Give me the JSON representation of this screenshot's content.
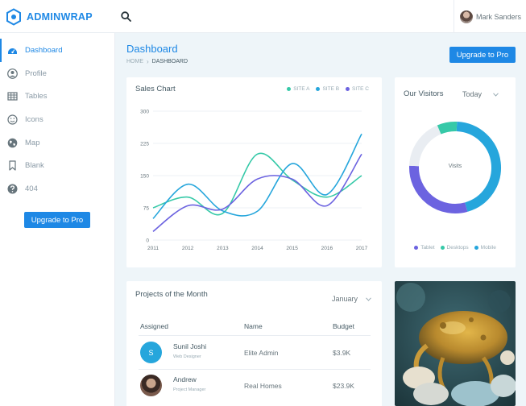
{
  "brand": {
    "part1": "ADMIN",
    "part2": "WRAP"
  },
  "header": {
    "user_name": "Mark Sanders"
  },
  "sidebar": {
    "items": [
      {
        "label": "Dashboard",
        "icon": "dashboard-icon"
      },
      {
        "label": "Profile",
        "icon": "user-icon"
      },
      {
        "label": "Tables",
        "icon": "table-icon"
      },
      {
        "label": "Icons",
        "icon": "smiley-icon"
      },
      {
        "label": "Map",
        "icon": "globe-icon"
      },
      {
        "label": "Blank",
        "icon": "bookmark-icon"
      },
      {
        "label": "404",
        "icon": "help-icon"
      }
    ],
    "upgrade_label": "Upgrade to Pro"
  },
  "page": {
    "title": "Dashboard",
    "breadcrumb_home": "HOME",
    "breadcrumb_current": "DASHBOARD",
    "upgrade_label": "Upgrade to Pro"
  },
  "sales": {
    "title": "Sales Chart",
    "legend": [
      "SITE A",
      "SITE B",
      "SITE C"
    ]
  },
  "chart_data": {
    "type": "line",
    "title": "Sales Chart",
    "xlabel": "",
    "ylabel": "",
    "x": [
      "2011",
      "2012",
      "2013",
      "2014",
      "2015",
      "2016",
      "2017"
    ],
    "y_ticks": [
      0,
      75,
      150,
      225,
      300
    ],
    "ylim": [
      0,
      300
    ],
    "grid": "horizontal",
    "legend_position": "top-right",
    "series": [
      {
        "name": "SITE A",
        "color": "#36c9a8",
        "values": [
          75,
          100,
          62,
          200,
          140,
          100,
          150
        ]
      },
      {
        "name": "SITE B",
        "color": "#26a6dc",
        "values": [
          50,
          130,
          68,
          67,
          178,
          106,
          247
        ]
      },
      {
        "name": "SITE C",
        "color": "#6c63e0",
        "values": [
          20,
          80,
          72,
          142,
          142,
          80,
          200
        ]
      }
    ]
  },
  "visitors": {
    "title": "Our Visitors",
    "filter": "Today",
    "center_label": "Visits",
    "legend": [
      {
        "name": "Tablet",
        "color": "#6c63e0"
      },
      {
        "name": "Desktops",
        "color": "#36c9a8"
      },
      {
        "name": "Mobile",
        "color": "#26a6dc"
      }
    ],
    "slices": [
      {
        "name": "Mobile",
        "value": 45,
        "color": "#26a6dc"
      },
      {
        "name": "Tablet",
        "value": 30,
        "color": "#6c63e0"
      },
      {
        "name": "Other",
        "value": 18,
        "color": "#e9edf2"
      },
      {
        "name": "Desktops",
        "value": 7,
        "color": "#36c9a8"
      }
    ]
  },
  "projects": {
    "title": "Projects of the Month",
    "month": "January",
    "columns": [
      "Assigned",
      "Name",
      "Budget"
    ],
    "rows": [
      {
        "initial": "S",
        "name": "Sunil Joshi",
        "role": "Web Designer",
        "project": "Elite Admin",
        "budget": "$3.9K"
      },
      {
        "initial": "",
        "name": "Andrew",
        "role": "Project Manager",
        "project": "Real Homes",
        "budget": "$23.9K"
      }
    ]
  },
  "colors": {
    "primary": "#1e88e5",
    "site_a": "#36c9a8",
    "site_b": "#26a6dc",
    "site_c": "#6c63e0"
  }
}
